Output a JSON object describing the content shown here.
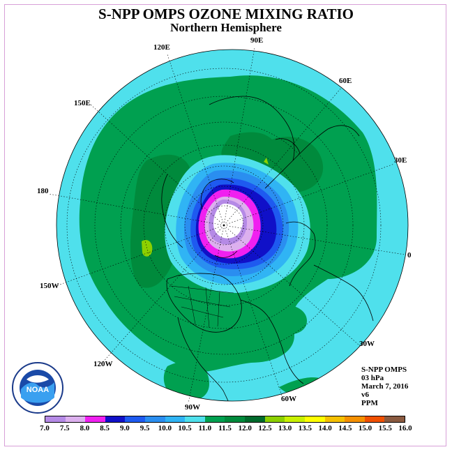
{
  "title": "S-NPP OMPS OZONE MIXING RATIO",
  "subtitle": "Northern Hemisphere",
  "longitude_labels": [
    "90E",
    "60E",
    "30E",
    "0",
    "30W",
    "60W",
    "90W",
    "120W",
    "150W",
    "180",
    "150E",
    "120E"
  ],
  "info": {
    "line1": "S-NPP OMPS",
    "line2": "03 hPa",
    "line3": "March 7, 2016",
    "line4": "v6",
    "line5": "PPM"
  },
  "logo_text": "NOAA",
  "colorbar": {
    "ticks": [
      "7.0",
      "7.5",
      "8.0",
      "8.5",
      "9.0",
      "9.5",
      "10.0",
      "10.5",
      "11.0",
      "11.5",
      "12.0",
      "12.5",
      "13.0",
      "13.5",
      "14.0",
      "14.5",
      "15.0",
      "15.5",
      "16.0"
    ],
    "colors": [
      "#b58ae6",
      "#dcb0ee",
      "#f020f0",
      "#1010c8",
      "#1e5af0",
      "#2a8ef0",
      "#30b4f4",
      "#4fe0ec",
      "#00a050",
      "#008a3c",
      "#006a2c",
      "#8cd000",
      "#c8f000",
      "#ffff00",
      "#f5c000",
      "#f59000",
      "#f05000",
      "#e80000",
      "#8a5a40"
    ]
  }
}
